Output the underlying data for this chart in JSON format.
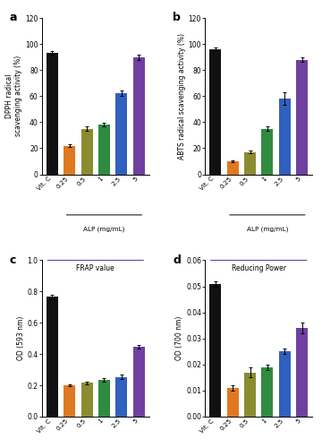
{
  "categories": [
    "Vit. C",
    "0.25",
    "0.5",
    "1",
    "2.5",
    "5"
  ],
  "colors": [
    "#111111",
    "#e07820",
    "#8b8b30",
    "#2e8b40",
    "#3060c0",
    "#7040a0"
  ],
  "panel_a": {
    "label": "a",
    "ylabel": "DPPH radical\nscavenging activity (%)",
    "values": [
      93,
      22,
      35,
      38,
      62,
      90
    ],
    "errors": [
      1.5,
      1.0,
      1.5,
      1.5,
      2.0,
      2.0
    ],
    "ylim": [
      0,
      120
    ],
    "yticks": [
      0,
      20,
      40,
      60,
      80,
      100,
      120
    ]
  },
  "panel_b": {
    "label": "b",
    "ylabel": "ABTS radical scavenging activity (%)",
    "values": [
      96,
      10,
      17,
      35,
      58,
      88
    ],
    "errors": [
      1.0,
      0.8,
      1.0,
      1.5,
      5.0,
      1.5
    ],
    "ylim": [
      0,
      120
    ],
    "yticks": [
      0,
      20,
      40,
      60,
      80,
      100,
      120
    ]
  },
  "panel_c": {
    "label": "c",
    "ylabel": "OD (593 nm)",
    "inner_title": "FRAP value",
    "values": [
      0.77,
      0.2,
      0.215,
      0.235,
      0.255,
      0.445
    ],
    "errors": [
      0.012,
      0.008,
      0.01,
      0.01,
      0.012,
      0.012
    ],
    "ylim": [
      0,
      1.0
    ],
    "yticks": [
      0.0,
      0.2,
      0.4,
      0.6,
      0.8,
      1.0
    ]
  },
  "panel_d": {
    "label": "d",
    "ylabel": "OD (700 nm)",
    "inner_title": "Reducing Power",
    "values": [
      0.051,
      0.011,
      0.017,
      0.019,
      0.025,
      0.034
    ],
    "errors": [
      0.001,
      0.001,
      0.002,
      0.001,
      0.001,
      0.002
    ],
    "ylim": [
      0,
      0.06
    ],
    "yticks": [
      0.0,
      0.01,
      0.02,
      0.03,
      0.04,
      0.05,
      0.06
    ]
  },
  "xlabel_alp": "ALP (mg/mL)",
  "title_line_color": "#5050b0"
}
